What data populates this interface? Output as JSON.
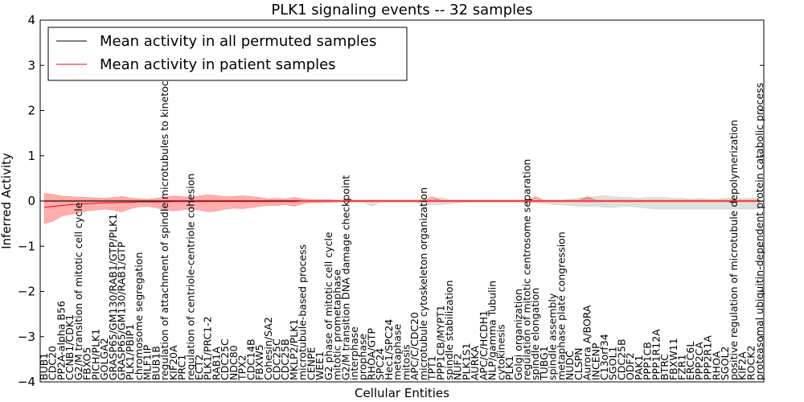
{
  "chart_data": {
    "type": "line",
    "title": "PLK1 signaling events -- 32 samples",
    "xlabel": "Cellular Entities",
    "ylabel": "Inferred Activity",
    "ylim": [
      -4,
      4
    ],
    "yticks": [
      -4,
      -3,
      -2,
      -1,
      0,
      1,
      2,
      3,
      4
    ],
    "ytick_labels": [
      "−4",
      "−3",
      "−2",
      "−1",
      "0",
      "1",
      "2",
      "3",
      "4"
    ],
    "legend_position": "top-left",
    "categories": [
      "BUB1",
      "CDC20",
      "PP2A-alpha B56",
      "CCNB1/CDK1",
      "G2/M transition of mitotic cell cycle",
      "FBXO5",
      "PICH/PLK1",
      "GOLGA2",
      "GRASP65/GM130/RAB1/GTP/PLK1",
      "GRASP65/GM130/RAB1/GTP",
      "PLK1/PBIP1",
      "chromosome segregation",
      "MLF1IP",
      "BUB1B",
      "regulation of attachment of spindle microtubules to kinetochore",
      "KIF20A",
      "PRC1",
      "regulation of centriole-centriole cohesion",
      "ECT2",
      "PLK1/PRC1-2",
      "RAB1A",
      "CDC25C",
      "NDC80",
      "TPX2",
      "CDC14B",
      "FBXW5",
      "Cohesin/SA2",
      "CDC25C",
      "CDC25B",
      "MKLP2/PLK1",
      "microtubule-based process",
      "CENPE",
      "WEE1",
      "G2 phase of mitotic cell cycle",
      "mitotic prometaphase",
      "G2/M transition DNA damage checkpoint",
      "interphase",
      "prophase",
      "RHOA/GTP",
      "SPC24",
      "Hec1/SPC24",
      "metaphase",
      "mitosis",
      "APC/C/CDC20",
      "microtubule cytoskeleton organization",
      "TPT1",
      "PPP1CB/MYPT1",
      "spindle stabilization",
      "NUF2",
      "PLK1S1",
      "AURKA",
      "APC/C/HCDH1",
      "NLP/gamma Tubulin",
      "cytokinesis",
      "PLK1",
      "Golgi organization",
      "regulation of mitotic centrosome separation",
      "spindle elongation",
      "TUBG1",
      "spindle assembly",
      "metaphase plate congression",
      "NUDC",
      "CLSPN",
      "Aurora A/BORA",
      "INCENP",
      "C13orf34",
      "SGOL1",
      "CDC25B",
      "ODF2",
      "PAK1",
      "PPP1CB",
      "PPP1R12A",
      "BTRC",
      "FBXW11",
      "FZR1",
      "ERCC6L",
      "PPP2CA",
      "PPP2R1A",
      "RHOA",
      "SGOL2",
      "positive regulation of microtubule depolymerization",
      "KIF2A",
      "ROCK2",
      "proteasomal ubiquitin-dependent protein catabolic process"
    ],
    "series": [
      {
        "name": "Mean activity in all permuted samples",
        "color": "#000000",
        "values": [
          0,
          0,
          0,
          0,
          0,
          0,
          0,
          0,
          0,
          0,
          0,
          0,
          0,
          0,
          0,
          0,
          0,
          0,
          0,
          0,
          0,
          0,
          0,
          0,
          0,
          0,
          0,
          0,
          0,
          0,
          0,
          0,
          0,
          0,
          0,
          0,
          0,
          0,
          0,
          0,
          0,
          0,
          0,
          0,
          0,
          0,
          0,
          0,
          0,
          0,
          0,
          0,
          0,
          0,
          0,
          0,
          0,
          0,
          0,
          0,
          0,
          0,
          0,
          0,
          0,
          0,
          0,
          0,
          0,
          0,
          0,
          0,
          0,
          0,
          0,
          0,
          0,
          0,
          0,
          0,
          0,
          0,
          0,
          0
        ],
        "band_upper": [
          0.02,
          0.02,
          0.02,
          0.02,
          0.02,
          0.02,
          0.02,
          0.02,
          0.02,
          0.02,
          0.02,
          0.02,
          0.02,
          0.02,
          0.02,
          0.02,
          0.02,
          0.02,
          0.02,
          0.02,
          0.02,
          0.02,
          0.02,
          0.02,
          0.02,
          0.02,
          0.02,
          0.02,
          0.02,
          0.02,
          0.02,
          0.02,
          0.02,
          0.02,
          0.02,
          0.02,
          0.02,
          0.02,
          0.02,
          0.02,
          0.02,
          0.02,
          0.02,
          0.02,
          0.02,
          0.02,
          0.08,
          0.02,
          0.02,
          0.02,
          0.02,
          0.02,
          0.02,
          0.02,
          0.02,
          0.02,
          0.02,
          0.02,
          0.02,
          0.02,
          0.02,
          0.04,
          0.06,
          0.08,
          0.1,
          0.12,
          0.1,
          0.08,
          0.08,
          0.06,
          0.08,
          0.08,
          0.08,
          0.06,
          0.06,
          0.04,
          0.06,
          0.04,
          0.04,
          0.06,
          0.06,
          0.06,
          0.06,
          0.06
        ],
        "band_lower": [
          -0.02,
          -0.02,
          -0.02,
          -0.02,
          -0.02,
          -0.02,
          -0.02,
          -0.02,
          -0.02,
          -0.02,
          -0.02,
          -0.02,
          -0.02,
          -0.02,
          -0.02,
          -0.02,
          -0.02,
          -0.02,
          -0.02,
          -0.02,
          -0.02,
          -0.02,
          -0.02,
          -0.02,
          -0.02,
          -0.02,
          -0.02,
          -0.02,
          -0.02,
          -0.02,
          -0.02,
          -0.02,
          -0.02,
          -0.02,
          -0.02,
          -0.02,
          -0.02,
          -0.02,
          -0.12,
          -0.02,
          -0.02,
          -0.02,
          -0.02,
          -0.02,
          -0.1,
          -0.08,
          -0.08,
          -0.06,
          -0.04,
          -0.02,
          -0.02,
          -0.02,
          -0.02,
          -0.02,
          -0.02,
          -0.02,
          -0.04,
          -0.04,
          -0.06,
          -0.08,
          -0.08,
          -0.1,
          -0.12,
          -0.12,
          -0.12,
          -0.14,
          -0.14,
          -0.12,
          -0.12,
          -0.14,
          -0.16,
          -0.18,
          -0.18,
          -0.18,
          -0.18,
          -0.18,
          -0.18,
          -0.18,
          -0.18,
          -0.18,
          -0.18,
          -0.18,
          -0.18,
          -0.18
        ]
      },
      {
        "name": "Mean activity in patient samples",
        "color": "#ff0000",
        "values": [
          -0.14,
          -0.12,
          -0.1,
          -0.08,
          -0.07,
          -0.06,
          -0.05,
          -0.04,
          -0.04,
          -0.03,
          -0.03,
          -0.02,
          -0.02,
          -0.02,
          -0.02,
          -0.01,
          -0.01,
          -0.01,
          -0.01,
          -0.01,
          -0.01,
          -0.01,
          -0.01,
          -0.01,
          -0.01,
          -0.01,
          -0.01,
          -0.01,
          -0.01,
          -0.01,
          0,
          0,
          0,
          0,
          0,
          0,
          0,
          0,
          0,
          0,
          0,
          0,
          0,
          0,
          0,
          0,
          0,
          0,
          0,
          0,
          0,
          0,
          0,
          0,
          0,
          0,
          0,
          0,
          0,
          0,
          0,
          0,
          0,
          0,
          0,
          0,
          0,
          0,
          0,
          0,
          0,
          0,
          0,
          0,
          0,
          0,
          0,
          0,
          0,
          0,
          0,
          0,
          0,
          0
        ],
        "band_upper": [
          0.17,
          0.15,
          0.11,
          0.1,
          0.09,
          0.08,
          0.07,
          0.06,
          0.08,
          0.1,
          0.07,
          0.05,
          0.04,
          0.06,
          0.09,
          0.11,
          0.1,
          0.08,
          0.11,
          0.14,
          0.12,
          0.1,
          0.1,
          0.12,
          0.1,
          0.08,
          0.05,
          0.06,
          0.05,
          0.08,
          0.05,
          0.03,
          0.03,
          0.03,
          0.02,
          0.02,
          0.02,
          0.02,
          0.02,
          0.02,
          0.02,
          0.02,
          0.02,
          0.02,
          0.02,
          0.1,
          0.02,
          0.02,
          0.02,
          0.02,
          0.02,
          0.02,
          0.02,
          0.02,
          0.02,
          0.02,
          0.02,
          0.1,
          0.02,
          0.02,
          0.02,
          0.02,
          0.02,
          0.1,
          0.02,
          0.02,
          0.02,
          0.02,
          0.02,
          0.02,
          0.02,
          0.02,
          0.02,
          0.02,
          0.02,
          0.02,
          0.02,
          0.02,
          0.02,
          0.02,
          0.02,
          0.02,
          0.02,
          0.02
        ],
        "band_lower": [
          -0.5,
          -0.45,
          -0.34,
          -0.3,
          -0.26,
          -0.22,
          -0.2,
          -0.18,
          -0.2,
          -0.24,
          -0.17,
          -0.13,
          -0.12,
          -0.15,
          -0.2,
          -0.22,
          -0.2,
          -0.17,
          -0.2,
          -0.24,
          -0.22,
          -0.18,
          -0.16,
          -0.17,
          -0.15,
          -0.12,
          -0.1,
          -0.1,
          -0.08,
          -0.12,
          -0.06,
          -0.04,
          -0.04,
          -0.03,
          -0.02,
          -0.02,
          -0.02,
          -0.02,
          -0.02,
          -0.02,
          -0.02,
          -0.02,
          -0.02,
          -0.02,
          -0.02,
          -0.02,
          -0.02,
          -0.02,
          -0.02,
          -0.02,
          -0.02,
          -0.02,
          -0.02,
          -0.02,
          -0.02,
          -0.02,
          -0.02,
          -0.02,
          -0.02,
          -0.02,
          -0.02,
          -0.02,
          -0.02,
          -0.02,
          -0.02,
          -0.02,
          -0.02,
          -0.02,
          -0.02,
          -0.02,
          -0.02,
          -0.02,
          -0.02,
          -0.02,
          -0.02,
          -0.02,
          -0.02,
          -0.02,
          -0.02,
          -0.02,
          -0.02,
          -0.02,
          -0.02,
          -0.02
        ]
      }
    ]
  }
}
